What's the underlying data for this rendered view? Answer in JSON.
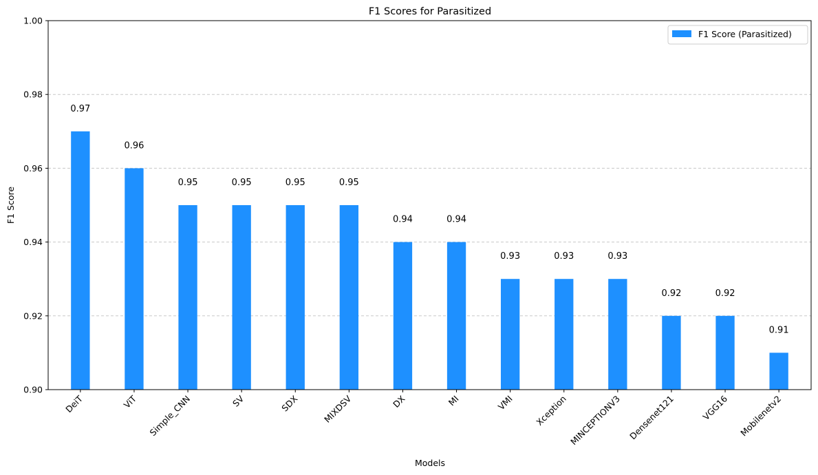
{
  "chart_data": {
    "type": "bar",
    "title": "F1 Scores for Parasitized",
    "xlabel": "Models",
    "ylabel": "F1 Score",
    "categories": [
      "DeiT",
      "ViT",
      "Simple_CNN",
      "SV",
      "SDX",
      "MIXDSV",
      "DX",
      "MI",
      "VMI",
      "Xception",
      "MINCEPTIONV3",
      "Densenet121",
      "VGG16",
      "Mobilenetv2"
    ],
    "series": [
      {
        "name": "F1 Score (Parasitized)",
        "values": [
          0.97,
          0.96,
          0.95,
          0.95,
          0.95,
          0.95,
          0.94,
          0.94,
          0.93,
          0.93,
          0.93,
          0.92,
          0.92,
          0.91
        ],
        "labels": [
          "0.97",
          "0.96",
          "0.95",
          "0.95",
          "0.95",
          "0.95",
          "0.94",
          "0.94",
          "0.93",
          "0.93",
          "0.93",
          "0.92",
          "0.92",
          "0.91"
        ]
      }
    ],
    "ylim": [
      0.9,
      1.0
    ],
    "yticks": [
      0.9,
      0.92,
      0.94,
      0.96,
      0.98,
      1.0
    ],
    "ytick_labels": [
      "0.90",
      "0.92",
      "0.94",
      "0.96",
      "0.98",
      "1.00"
    ],
    "grid": "y-dashed",
    "legend_position": "top-right",
    "colors": {
      "bar": "#1e90ff",
      "grid": "#c8c8c8",
      "axis": "#000000"
    }
  }
}
